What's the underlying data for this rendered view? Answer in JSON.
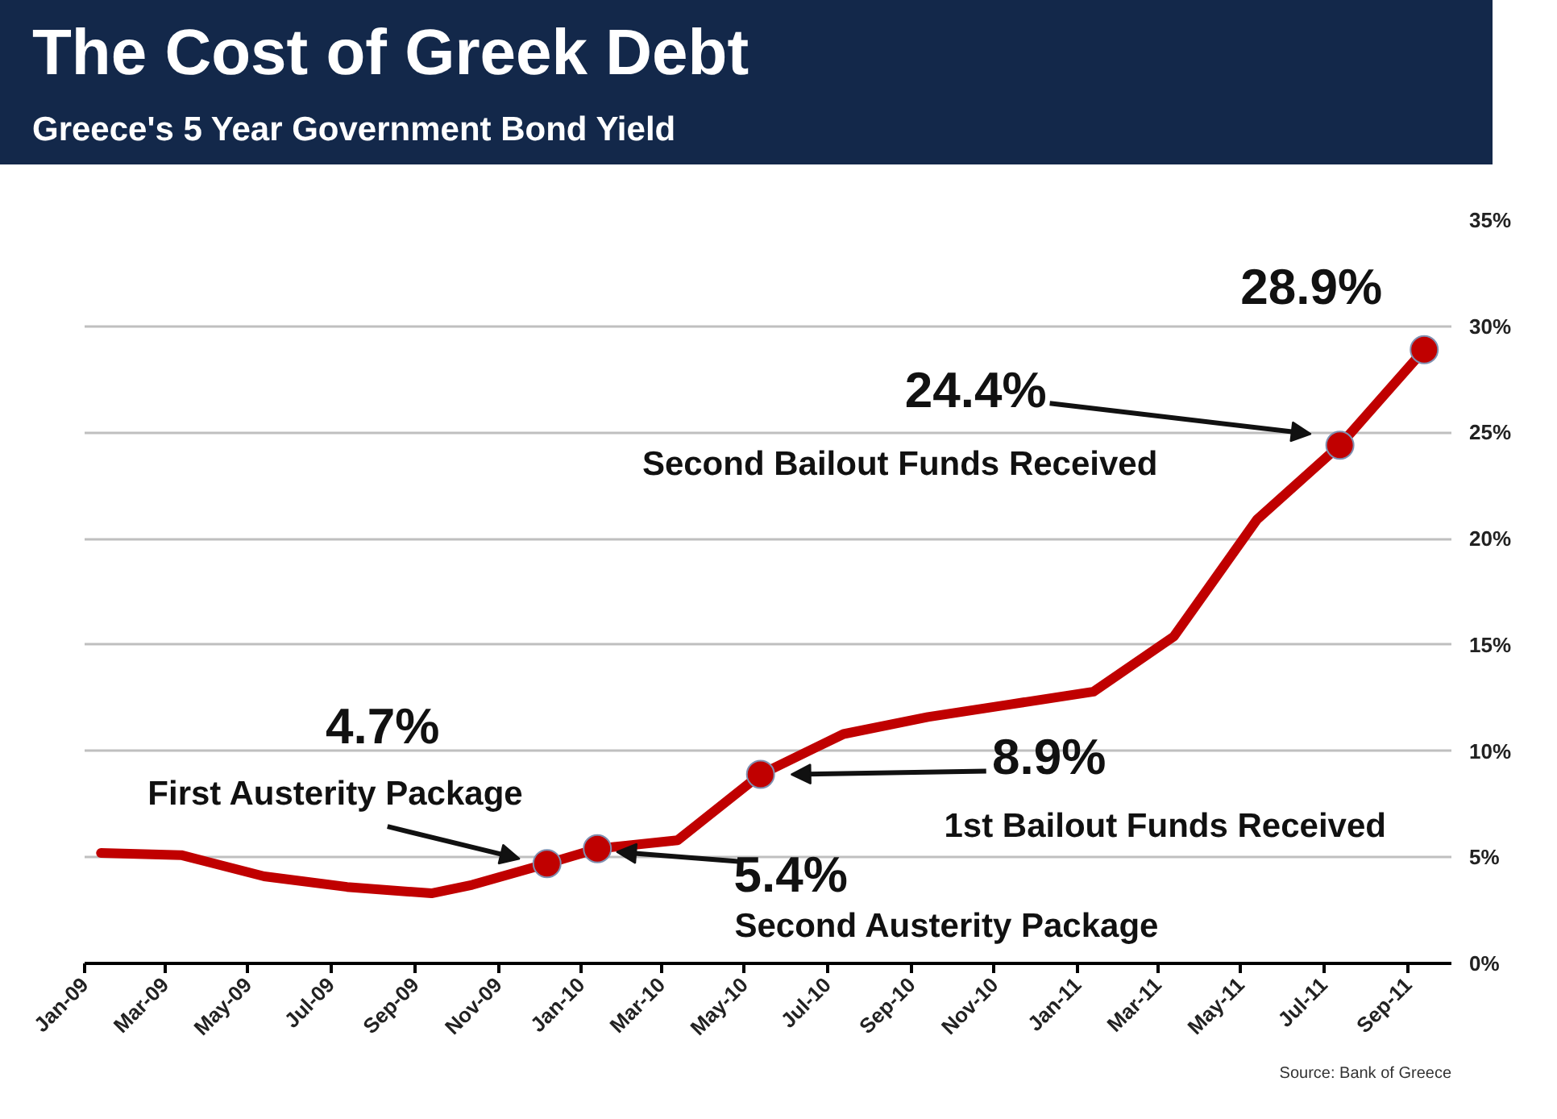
{
  "chart_data": {
    "type": "line",
    "title": "The Cost of Greek Debt",
    "subtitle": "Greece's 5 Year Government Bond Yield",
    "series": [
      {
        "color": "#c00000",
        "marker": "none",
        "x": [
          "2009-01-13",
          "2009-03-13",
          "2009-05-13",
          "2009-07-13",
          "2009-09-13",
          "2009-10-13",
          "2009-12-07",
          "2010-01-13",
          "2010-03-13",
          "2010-05-13",
          "2010-07-13",
          "2010-09-13",
          "2010-11-13",
          "2011-01-13",
          "2011-03-13",
          "2011-05-13",
          "2011-07-13",
          "2011-09-13"
        ],
        "values": [
          5.2,
          5.1,
          4.1,
          3.6,
          3.3,
          3.7,
          4.7,
          5.4,
          5.8,
          8.9,
          10.8,
          11.6,
          12.2,
          12.8,
          15.4,
          20.9,
          24.4,
          28.9
        ]
      },
      {
        "type": "scatter",
        "color": "#c00000",
        "marker": "circle",
        "x": [
          "2009-12-07",
          "2010-01-13",
          "2010-05-13",
          "2011-07-13",
          "2011-09-13"
        ],
        "values": [
          4.7,
          5.4,
          8.9,
          24.4,
          28.9
        ]
      }
    ],
    "xlim": [
      "2009-01-01",
      "2011-10-03"
    ],
    "xticks": [
      {
        "value": "2009-01-01",
        "label": "Jan-09"
      },
      {
        "value": "2009-03-01",
        "label": "Mar-09"
      },
      {
        "value": "2009-05-01",
        "label": "May-09"
      },
      {
        "value": "2009-07-01",
        "label": "Jul-09"
      },
      {
        "value": "2009-09-01",
        "label": "Sep-09"
      },
      {
        "value": "2009-11-01",
        "label": "Nov-09"
      },
      {
        "value": "2010-01-01",
        "label": "Jan-10"
      },
      {
        "value": "2010-03-01",
        "label": "Mar-10"
      },
      {
        "value": "2010-05-01",
        "label": "May-10"
      },
      {
        "value": "2010-07-01",
        "label": "Jul-10"
      },
      {
        "value": "2010-09-01",
        "label": "Sep-10"
      },
      {
        "value": "2010-11-01",
        "label": "Nov-10"
      },
      {
        "value": "2011-01-01",
        "label": "Jan-11"
      },
      {
        "value": "2011-03-01",
        "label": "Mar-11"
      },
      {
        "value": "2011-05-01",
        "label": "May-11"
      },
      {
        "value": "2011-07-01",
        "label": "Jul-11"
      },
      {
        "value": "2011-09-01",
        "label": "Sep-11"
      }
    ],
    "ylim": [
      0,
      35
    ],
    "yticks": [
      {
        "value": 0,
        "label": "0%"
      },
      {
        "value": 5,
        "label": "5%"
      },
      {
        "value": 10,
        "label": "10%"
      },
      {
        "value": 15,
        "label": "15%"
      },
      {
        "value": 20,
        "label": "20%"
      },
      {
        "value": 25,
        "label": "25%"
      },
      {
        "value": 30,
        "label": "30%"
      },
      {
        "value": 35,
        "label": "35%"
      }
    ],
    "grid": "y",
    "annotations": [
      "4.7%",
      {
        "text": "First Austerity Package",
        "x": "2009-12-07",
        "y": 4.7
      },
      {
        "text": "5.4%",
        "x": "2010-01-13",
        "y": 5.4
      },
      "Second Austerity Package",
      "8.9%",
      "1st Bailout Funds Received",
      "24.4%",
      "Second Bailout Funds Received",
      {
        "text": "28.9%",
        "x": "2011-09-13",
        "y": 28.9
      },
      "Source: Bank of Greece"
    ]
  }
}
